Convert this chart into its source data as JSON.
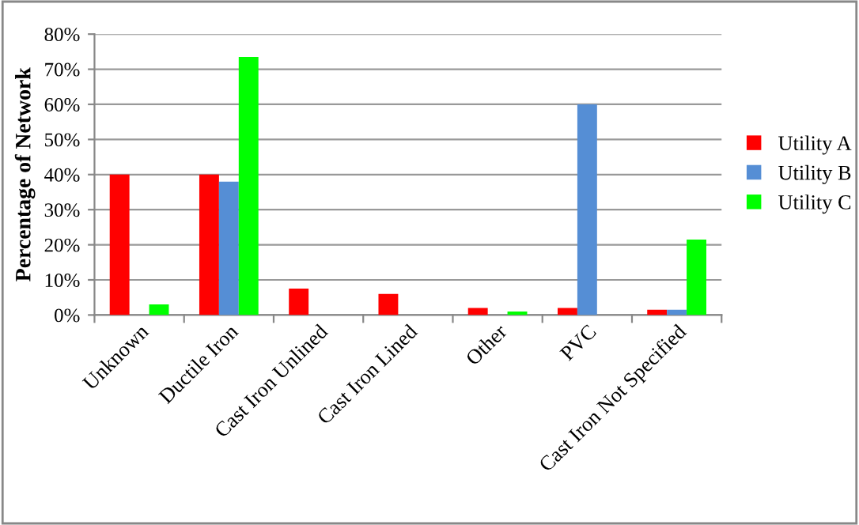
{
  "chart_data": {
    "type": "bar",
    "ylabel": "Percentage of Network",
    "categories": [
      "Unknown",
      "Ductile Iron",
      "Cast Iron Unlined",
      "Cast Iron Lined",
      "Other",
      "PVC",
      "Cast Iron Not Specified"
    ],
    "series": [
      {
        "name": "Utility A",
        "color": "#ff0000",
        "values": [
          40,
          40,
          7.5,
          6,
          2,
          2,
          1.5
        ]
      },
      {
        "name": "Utility B",
        "color": "#558ed5",
        "values": [
          0,
          38,
          0,
          0,
          0,
          60,
          1.5
        ]
      },
      {
        "name": "Utility C",
        "color": "#00ff00",
        "values": [
          3,
          73.5,
          0,
          0,
          1,
          0,
          21.5
        ]
      }
    ],
    "ylim": [
      0,
      80
    ],
    "yticks": [
      {
        "value": 0,
        "label": "0%"
      },
      {
        "value": 10,
        "label": "10%"
      },
      {
        "value": 20,
        "label": "20%"
      },
      {
        "value": 30,
        "label": "30%"
      },
      {
        "value": 40,
        "label": "40%"
      },
      {
        "value": 50,
        "label": "50%"
      },
      {
        "value": 60,
        "label": "60%"
      },
      {
        "value": 70,
        "label": "70%"
      },
      {
        "value": 80,
        "label": "80%"
      }
    ],
    "grid": "y",
    "legend": "right"
  }
}
